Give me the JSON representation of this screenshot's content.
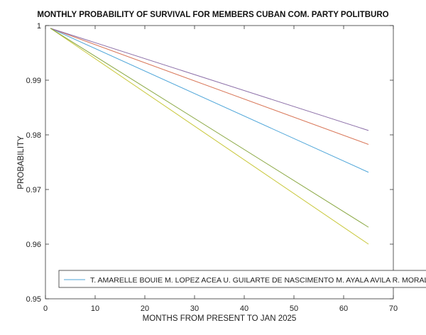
{
  "chart_data": {
    "type": "line",
    "title": "MONTHLY PROBABILITY OF SURVIVAL FOR MEMBERS CUBAN COM. PARTY POLITBURO",
    "xlabel": "MONTHS FROM PRESENT TO JAN 2025",
    "ylabel": "PROBABILITY",
    "xlim": [
      0,
      70
    ],
    "ylim": [
      0.95,
      1.0
    ],
    "xticks": [
      0,
      10,
      20,
      30,
      40,
      50,
      60,
      70
    ],
    "xtick_labels": [
      "0",
      "10",
      "20",
      "30",
      "40",
      "50",
      "60",
      "70"
    ],
    "yticks": [
      0.95,
      0.96,
      0.97,
      0.98,
      0.99,
      1.0
    ],
    "ytick_labels": [
      "0.95",
      "0.96",
      "0.97",
      "0.98",
      "0.99",
      "1"
    ],
    "grid": false,
    "legend_placement": "bottom",
    "legend_orientation": "horizontal",
    "legend_text": "T. AMARELLE BOUIE  M. LOPEZ ACEA U. GUILARTE DE NASCIMENTO M. AYALA AVILA R. MORALES O",
    "series": [
      {
        "x": [
          1,
          65
        ],
        "y": [
          0.9995,
          0.97315
        ],
        "color": "#4FA6D9"
      },
      {
        "x": [
          1,
          65
        ],
        "y": [
          0.9995,
          0.97825
        ],
        "color": "#D9785A"
      },
      {
        "x": [
          1,
          65
        ],
        "y": [
          0.9995,
          0.96
        ],
        "color": "#C9C83C"
      },
      {
        "x": [
          1,
          65
        ],
        "y": [
          0.9995,
          0.9808
        ],
        "color": "#8C6FA8"
      },
      {
        "x": [
          1,
          65
        ],
        "y": [
          0.9995,
          0.9631
        ],
        "color": "#8AA843"
      }
    ]
  }
}
